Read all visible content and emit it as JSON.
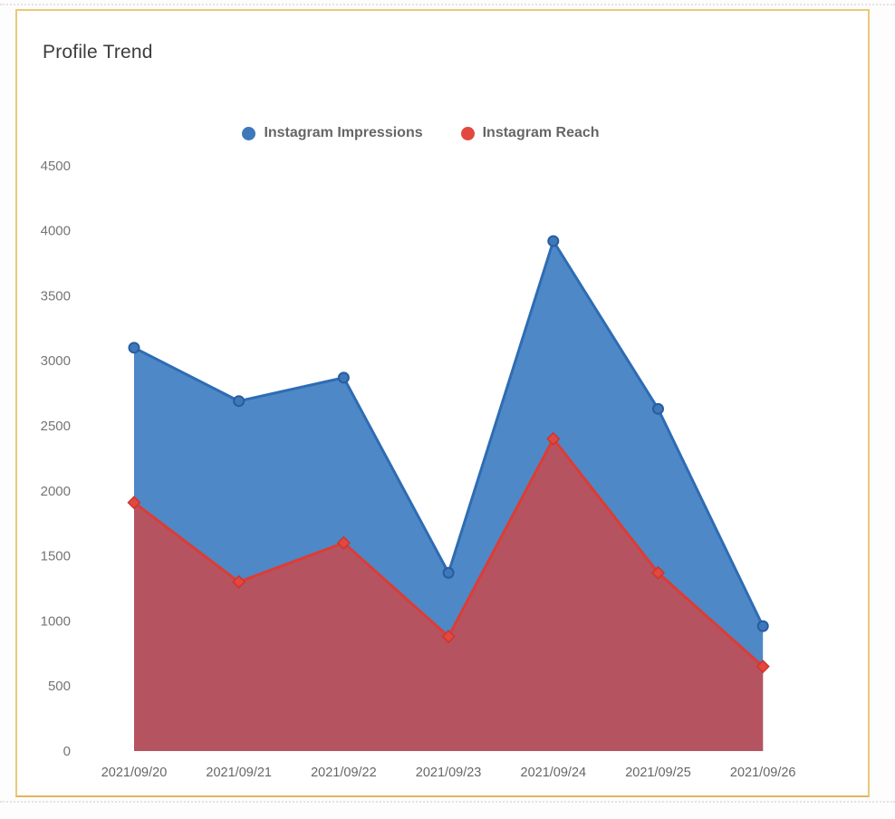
{
  "chart_data": {
    "type": "area",
    "title": "Profile Trend",
    "x": [
      "2021/09/20",
      "2021/09/21",
      "2021/09/22",
      "2021/09/23",
      "2021/09/24",
      "2021/09/25",
      "2021/09/26"
    ],
    "series": [
      {
        "name": "Instagram Impressions",
        "values": [
          3100,
          2690,
          2870,
          1370,
          3920,
          2630,
          960
        ],
        "line_color": "#2e6cb4",
        "fill_color": "#4e88c6",
        "marker": "circle",
        "marker_fill": "#3f78ba",
        "marker_stroke": "#275d9e"
      },
      {
        "name": "Instagram Reach",
        "values": [
          1910,
          1300,
          1600,
          880,
          2400,
          1370,
          650
        ],
        "line_color": "#dd3c34",
        "fill_color": "#b65360",
        "marker": "diamond",
        "marker_fill": "#e2483f",
        "marker_stroke": "#cc352f"
      }
    ],
    "y_ticks": [
      0,
      500,
      1000,
      1500,
      2000,
      2500,
      3000,
      3500,
      4000,
      4500
    ],
    "ylim": [
      0,
      4500
    ],
    "grid": false,
    "legend_position": "top-center"
  },
  "colors": {
    "panel_border": "#ecc878"
  }
}
